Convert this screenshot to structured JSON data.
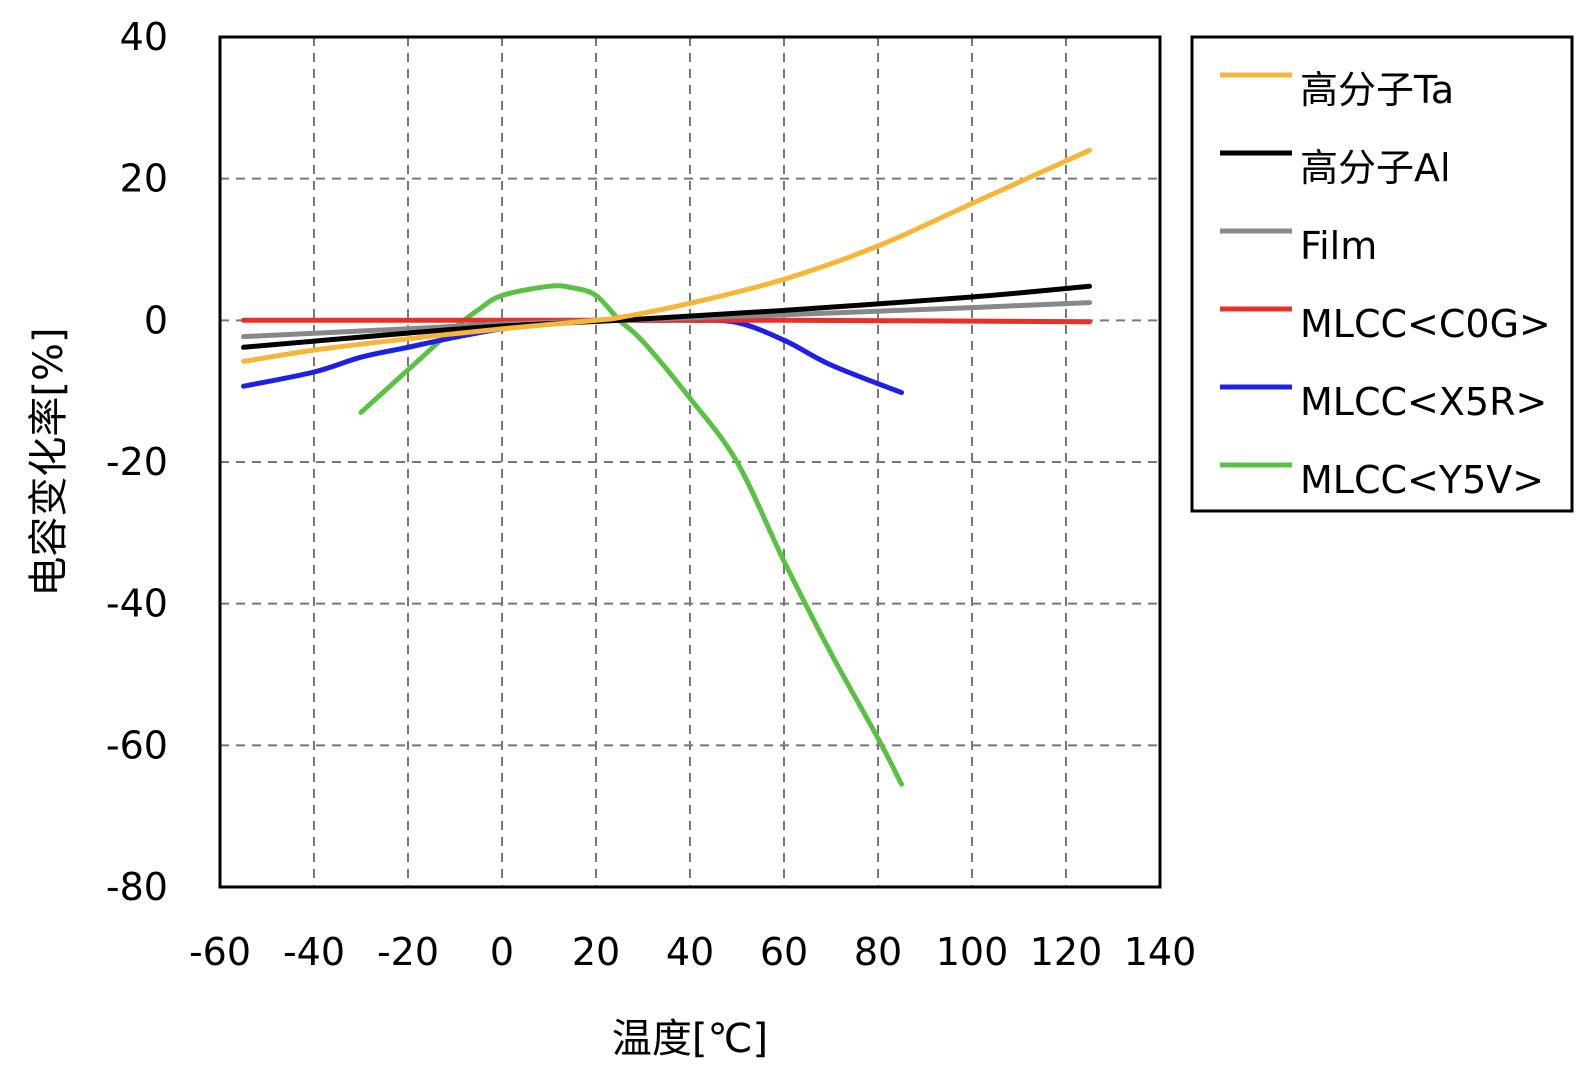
{
  "chart_data": {
    "type": "line",
    "xlabel": "温度[℃]",
    "ylabel": "电容变化率[%]",
    "xlim": [
      -60,
      140
    ],
    "ylim": [
      -80,
      40
    ],
    "xticks": [
      -60,
      -40,
      -20,
      0,
      20,
      40,
      60,
      80,
      100,
      120,
      140
    ],
    "yticks": [
      40,
      20,
      0,
      -20,
      -40,
      -60,
      -80
    ],
    "x_tick_labels": [
      "-60",
      "-40",
      "-20",
      "0",
      "20",
      "40",
      "60",
      "80",
      "100",
      "120",
      "140"
    ],
    "y_tick_labels": [
      "40",
      "20",
      "0",
      "-20",
      "-40",
      "-60",
      "-80"
    ],
    "grid": true,
    "legend_position": "right",
    "series": [
      {
        "name": "高分子Ta",
        "color": "#f5b73b",
        "points": [
          [
            -55,
            -5.8
          ],
          [
            -40,
            -4.2
          ],
          [
            -20,
            -2.6
          ],
          [
            0,
            -1.2
          ],
          [
            20,
            0
          ],
          [
            25,
            0.4
          ],
          [
            40,
            2.4
          ],
          [
            60,
            5.8
          ],
          [
            80,
            10.5
          ],
          [
            100,
            16.5
          ],
          [
            125,
            24
          ]
        ]
      },
      {
        "name": "高分子Al",
        "color": "#000000",
        "points": [
          [
            -55,
            -3.8
          ],
          [
            -20,
            -1.8
          ],
          [
            0,
            -0.8
          ],
          [
            25,
            0
          ],
          [
            60,
            1.4
          ],
          [
            100,
            3.3
          ],
          [
            125,
            4.8
          ]
        ]
      },
      {
        "name": "Film",
        "color": "#888888",
        "points": [
          [
            -55,
            -2.3
          ],
          [
            -20,
            -1.2
          ],
          [
            0,
            -0.5
          ],
          [
            25,
            0
          ],
          [
            60,
            0.8
          ],
          [
            100,
            1.8
          ],
          [
            125,
            2.5
          ]
        ]
      },
      {
        "name": "MLCC<C0G>",
        "color": "#e8302a",
        "points": [
          [
            -55,
            0
          ],
          [
            0,
            0
          ],
          [
            60,
            0
          ],
          [
            125,
            -0.2
          ]
        ]
      },
      {
        "name": "MLCC<X5R>",
        "color": "#1f1fe6",
        "points": [
          [
            -55,
            -9.3
          ],
          [
            -40,
            -7.3
          ],
          [
            -30,
            -5.2
          ],
          [
            -20,
            -3.8
          ],
          [
            -10,
            -2.4
          ],
          [
            0,
            -1.2
          ],
          [
            10,
            -0.5
          ],
          [
            20,
            0
          ],
          [
            30,
            0
          ],
          [
            40,
            0
          ],
          [
            50,
            -0.3
          ],
          [
            60,
            -2.8
          ],
          [
            70,
            -6.3
          ],
          [
            85,
            -10.2
          ]
        ]
      },
      {
        "name": "MLCC<Y5V>",
        "color": "#5dc046",
        "points": [
          [
            -30,
            -13
          ],
          [
            -20,
            -7
          ],
          [
            -10,
            -1
          ],
          [
            -5,
            1.5
          ],
          [
            0,
            3.5
          ],
          [
            10,
            4.8
          ],
          [
            15,
            4.6
          ],
          [
            20,
            3.5
          ],
          [
            25,
            0
          ],
          [
            30,
            -3
          ],
          [
            40,
            -11
          ],
          [
            50,
            -20
          ],
          [
            60,
            -34
          ],
          [
            70,
            -47
          ],
          [
            80,
            -59
          ],
          [
            85,
            -65.5
          ]
        ]
      }
    ]
  }
}
